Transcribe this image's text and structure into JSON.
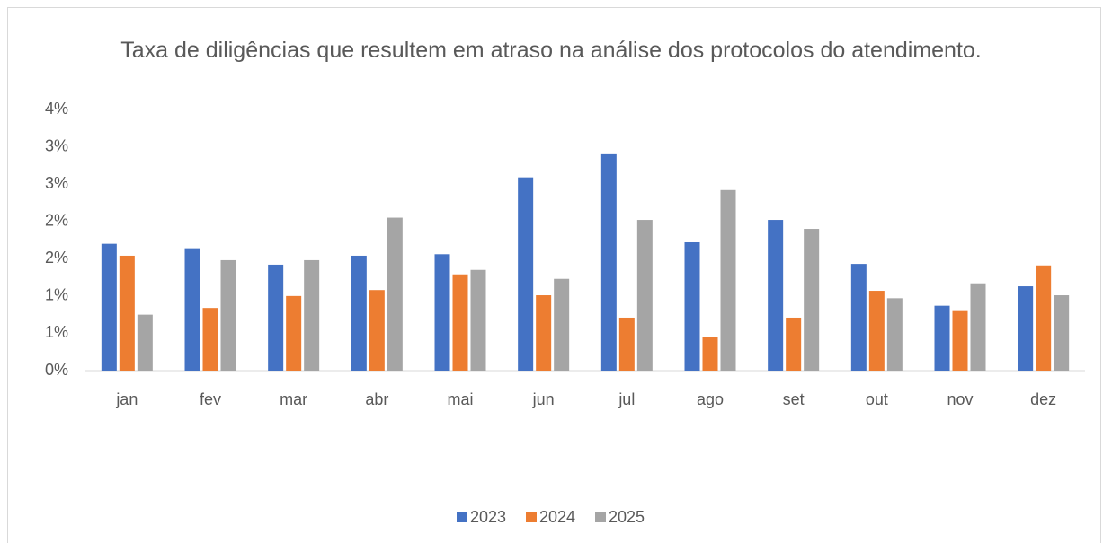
{
  "chart_data": {
    "type": "bar",
    "title": "Taxa de diligências que resultem em atraso na análise dos protocolos do atendimento.",
    "categories": [
      "jan",
      "fev",
      "mar",
      "abr",
      "mai",
      "jun",
      "jul",
      "ago",
      "set",
      "out",
      "nov",
      "dez"
    ],
    "series": [
      {
        "name": "2023",
        "color": "#4472c4",
        "values": [
          1.7,
          1.64,
          1.42,
          1.54,
          1.56,
          2.59,
          2.9,
          1.72,
          2.02,
          1.43,
          0.87,
          1.13
        ]
      },
      {
        "name": "2024",
        "color": "#ed7d31",
        "values": [
          1.54,
          0.84,
          1.0,
          1.08,
          1.29,
          1.01,
          0.71,
          0.45,
          0.71,
          1.07,
          0.81,
          1.41
        ]
      },
      {
        "name": "2025",
        "color": "#a5a5a5",
        "values": [
          0.75,
          1.48,
          1.48,
          2.05,
          1.35,
          1.23,
          2.02,
          2.42,
          1.9,
          0.97,
          1.17,
          1.01
        ]
      }
    ],
    "ylim": [
      0,
      3.5
    ],
    "yticks": [
      {
        "value": 0,
        "label": "0%"
      },
      {
        "value": 0.5,
        "label": "1%"
      },
      {
        "value": 1,
        "label": "1%"
      },
      {
        "value": 1.5,
        "label": "2%"
      },
      {
        "value": 2,
        "label": "2%"
      },
      {
        "value": 2.5,
        "label": "3%"
      },
      {
        "value": 3,
        "label": "3%"
      },
      {
        "value": 3.5,
        "label": "4%"
      }
    ],
    "grid": false,
    "legend": "bottom"
  }
}
